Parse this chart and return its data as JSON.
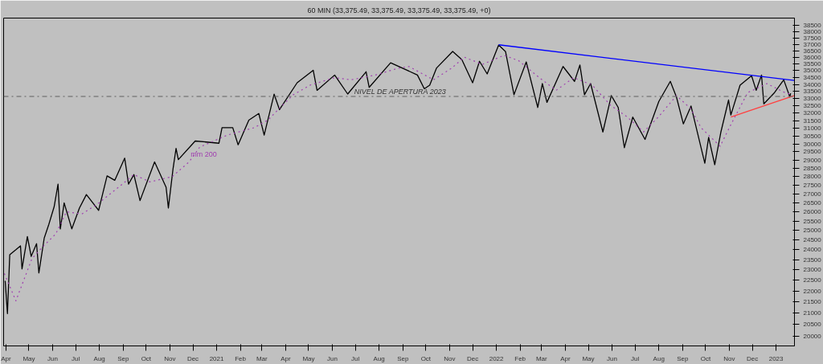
{
  "chart_data": {
    "type": "line",
    "title": "60 MIN (33,375.49, 33,375.49, 33,375.49, 33,375.49, +0)",
    "log": true,
    "grid": false,
    "marker": "none",
    "xlim": [
      "2020-03-29",
      "2023-01-25"
    ],
    "ylim": [
      19600,
      39100
    ],
    "xticks": [
      {
        "value": "2020-04-01",
        "label": "Apr"
      },
      {
        "value": "2020-05-01",
        "label": "May"
      },
      {
        "value": "2020-06-01",
        "label": "Jun"
      },
      {
        "value": "2020-07-01",
        "label": "Jul"
      },
      {
        "value": "2020-08-01",
        "label": "Aug"
      },
      {
        "value": "2020-09-01",
        "label": "Sep"
      },
      {
        "value": "2020-10-01",
        "label": "Oct"
      },
      {
        "value": "2020-11-01",
        "label": "Nov"
      },
      {
        "value": "2020-12-01",
        "label": "Dec"
      },
      {
        "value": "2021-01-01",
        "label": "2021"
      },
      {
        "value": "2021-02-01",
        "label": "Feb"
      },
      {
        "value": "2021-03-01",
        "label": "Mar"
      },
      {
        "value": "2021-04-01",
        "label": "Apr"
      },
      {
        "value": "2021-05-01",
        "label": "May"
      },
      {
        "value": "2021-06-01",
        "label": "Jun"
      },
      {
        "value": "2021-07-01",
        "label": "Jul"
      },
      {
        "value": "2021-08-01",
        "label": "Aug"
      },
      {
        "value": "2021-09-01",
        "label": "Sep"
      },
      {
        "value": "2021-10-01",
        "label": "Oct"
      },
      {
        "value": "2021-11-01",
        "label": "Nov"
      },
      {
        "value": "2021-12-01",
        "label": "Dec"
      },
      {
        "value": "2022-01-01",
        "label": "2022"
      },
      {
        "value": "2022-02-01",
        "label": "Feb"
      },
      {
        "value": "2022-03-01",
        "label": "Mar"
      },
      {
        "value": "2022-04-01",
        "label": "Apr"
      },
      {
        "value": "2022-05-01",
        "label": "May"
      },
      {
        "value": "2022-06-01",
        "label": "Jun"
      },
      {
        "value": "2022-07-01",
        "label": "Jul"
      },
      {
        "value": "2022-08-01",
        "label": "Aug"
      },
      {
        "value": "2022-09-01",
        "label": "Sep"
      },
      {
        "value": "2022-10-01",
        "label": "Oct"
      },
      {
        "value": "2022-11-01",
        "label": "Nov"
      },
      {
        "value": "2022-12-01",
        "label": "Dec"
      },
      {
        "value": "2023-01-01",
        "label": "2023"
      }
    ],
    "yticks": [
      20000,
      20500,
      21000,
      21500,
      22000,
      22500,
      23000,
      23500,
      24000,
      24500,
      25000,
      25500,
      26000,
      26500,
      27000,
      27500,
      28000,
      28500,
      29000,
      29500,
      30000,
      30500,
      31000,
      31500,
      32000,
      32500,
      33000,
      33500,
      34000,
      34500,
      35000,
      35500,
      36000,
      36500,
      37000,
      37500,
      38000,
      38500
    ],
    "ref_lines": [
      {
        "axis": "y",
        "value": 33150,
        "label": "NIVEL DE APERTURA 2023",
        "color": "#606060",
        "line_style": "dashed"
      }
    ],
    "series": [
      {
        "color": "#000000",
        "line_style": "solid",
        "x": [
          "2020-03-31",
          "2020-04-03",
          "2020-04-06",
          "2020-04-14",
          "2020-04-20",
          "2020-04-22",
          "2020-04-29",
          "2020-05-04",
          "2020-05-11",
          "2020-05-14",
          "2020-05-21",
          "2020-05-27",
          "2020-06-03",
          "2020-06-08",
          "2020-06-11",
          "2020-06-16",
          "2020-06-26",
          "2020-07-06",
          "2020-07-15",
          "2020-07-31",
          "2020-08-11",
          "2020-08-21",
          "2020-09-03",
          "2020-09-08",
          "2020-09-15",
          "2020-09-23",
          "2020-10-12",
          "2020-10-27",
          "2020-10-30",
          "2020-11-05",
          "2020-11-09",
          "2020-11-12",
          "2020-12-04",
          "2021-01-04",
          "2021-01-08",
          "2021-01-22",
          "2021-01-29",
          "2021-02-12",
          "2021-02-25",
          "2021-03-04",
          "2021-03-17",
          "2021-03-24",
          "2021-04-16",
          "2021-05-07",
          "2021-05-12",
          "2021-06-04",
          "2021-06-21",
          "2021-07-15",
          "2021-07-19",
          "2021-08-16",
          "2021-09-20",
          "2021-09-29",
          "2021-10-06",
          "2021-10-15",
          "2021-11-05",
          "2021-11-17",
          "2021-12-01",
          "2021-12-10",
          "2021-12-20",
          "2022-01-04",
          "2022-01-13",
          "2022-01-24",
          "2022-02-09",
          "2022-02-24",
          "2022-03-02",
          "2022-03-08",
          "2022-03-29",
          "2022-04-13",
          "2022-04-20",
          "2022-04-26",
          "2022-05-04",
          "2022-05-20",
          "2022-05-31",
          "2022-06-09",
          "2022-06-17",
          "2022-06-28",
          "2022-07-14",
          "2022-08-01",
          "2022-08-16",
          "2022-08-24",
          "2022-09-02",
          "2022-09-12",
          "2022-09-30",
          "2022-10-05",
          "2022-10-13",
          "2022-10-21",
          "2022-10-31",
          "2022-11-03",
          "2022-11-15",
          "2022-11-30",
          "2022-12-06",
          "2022-12-13",
          "2022-12-16",
          "2022-12-30",
          "2023-01-11",
          "2023-01-19",
          "2023-01-20"
        ],
        "values": [
          22480,
          20980,
          23750,
          24000,
          24200,
          23050,
          24680,
          23670,
          24310,
          22860,
          24600,
          25320,
          26290,
          27560,
          25080,
          26490,
          25080,
          26210,
          26960,
          26080,
          28040,
          27780,
          29110,
          27560,
          28120,
          26620,
          28880,
          27380,
          26210,
          28440,
          29710,
          29020,
          30180,
          30040,
          31040,
          31040,
          29940,
          31540,
          31980,
          30560,
          33310,
          32240,
          34120,
          35030,
          33580,
          34680,
          33320,
          34920,
          33790,
          35590,
          34680,
          33690,
          33950,
          35200,
          36450,
          35820,
          34120,
          35700,
          34760,
          36940,
          36430,
          33270,
          35650,
          32390,
          34060,
          32740,
          35310,
          34220,
          35420,
          33270,
          34060,
          30760,
          33210,
          32390,
          29760,
          31740,
          30280,
          32800,
          34220,
          33110,
          31290,
          32490,
          28800,
          30420,
          28710,
          30760,
          32900,
          31880,
          33950,
          34630,
          33580,
          34680,
          32640,
          33420,
          34330,
          33110,
          33375
        ]
      },
      {
        "name": "mm 200",
        "color": "#a040b0",
        "line_style": "dotted",
        "x": [
          "2020-03-30",
          "2020-04-14",
          "2020-05-05",
          "2020-05-20",
          "2020-06-05",
          "2020-06-19",
          "2020-07-09",
          "2020-07-29",
          "2020-08-26",
          "2020-09-15",
          "2020-10-06",
          "2020-11-04",
          "2020-11-26",
          "2020-12-10",
          "2021-01-15",
          "2021-02-19",
          "2021-03-09",
          "2021-03-24",
          "2021-04-11",
          "2021-05-03",
          "2021-06-04",
          "2021-06-25",
          "2021-07-27",
          "2021-08-24",
          "2021-09-09",
          "2021-10-11",
          "2021-11-04",
          "2021-11-20",
          "2021-12-14",
          "2022-01-11",
          "2022-01-30",
          "2022-02-26",
          "2022-03-20",
          "2022-04-12",
          "2022-05-06",
          "2022-05-30",
          "2022-06-21",
          "2022-07-12",
          "2022-08-01",
          "2022-08-24",
          "2022-09-12",
          "2022-09-25",
          "2022-10-20",
          "2022-11-03",
          "2022-11-25",
          "2022-12-20",
          "2023-01-14",
          "2023-01-20"
        ],
        "values": [
          22830,
          21550,
          23560,
          24190,
          24810,
          26000,
          25880,
          26410,
          27380,
          28120,
          27690,
          28000,
          28880,
          29800,
          30560,
          31040,
          31540,
          32340,
          33270,
          33950,
          34490,
          34330,
          34680,
          35150,
          35310,
          34330,
          35200,
          36010,
          35470,
          36150,
          35750,
          34490,
          33580,
          34490,
          33950,
          32540,
          31740,
          30760,
          31780,
          33210,
          32290,
          31040,
          29850,
          31240,
          33420,
          34060,
          33380,
          33320
        ]
      },
      {
        "color": "#0000ff",
        "line_style": "solid",
        "x": [
          "2022-01-04",
          "2023-01-25"
        ],
        "values": [
          36960,
          34280
        ]
      },
      {
        "color": "#ff4040",
        "line_style": "solid",
        "x": [
          "2022-11-03",
          "2023-01-25"
        ],
        "values": [
          31740,
          33215
        ]
      }
    ]
  }
}
